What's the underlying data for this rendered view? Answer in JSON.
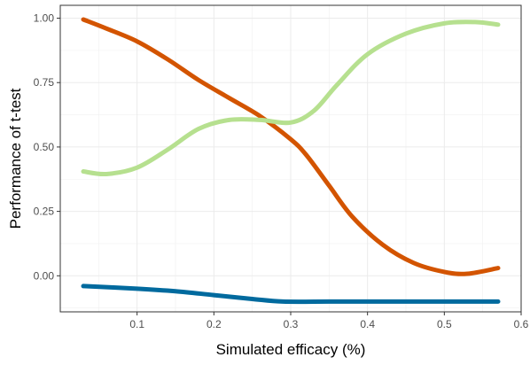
{
  "chart_data": {
    "type": "line",
    "xlabel": "Simulated efficacy (%)",
    "ylabel": "Performance of t-test",
    "xlim": [
      -0.0,
      0.6
    ],
    "ylim": [
      -0.14,
      1.05
    ],
    "x_ticks": [
      0.1,
      0.2,
      0.3,
      0.4,
      0.5,
      0.6
    ],
    "y_ticks": [
      0.0,
      0.25,
      0.5,
      0.75,
      1.0
    ],
    "x_tick_labels": [
      "0.1",
      "0.2",
      "0.3",
      "0.4",
      "0.5",
      "0.6"
    ],
    "y_tick_labels": [
      "0.00",
      "0.25",
      "0.50",
      "0.75",
      "1.00"
    ],
    "grid": true,
    "series": [
      {
        "color": "#d35400",
        "x": [
          0.03,
          0.06,
          0.1,
          0.14,
          0.18,
          0.22,
          0.26,
          0.3,
          0.32,
          0.35,
          0.38,
          0.42,
          0.46,
          0.5,
          0.53,
          0.57
        ],
        "y": [
          0.995,
          0.96,
          0.91,
          0.84,
          0.76,
          0.69,
          0.62,
          0.53,
          0.47,
          0.35,
          0.23,
          0.12,
          0.05,
          0.015,
          0.008,
          0.03
        ]
      },
      {
        "color": "#b6e08f",
        "x": [
          0.03,
          0.06,
          0.1,
          0.14,
          0.18,
          0.22,
          0.26,
          0.3,
          0.33,
          0.36,
          0.4,
          0.45,
          0.5,
          0.54,
          0.57
        ],
        "y": [
          0.405,
          0.395,
          0.42,
          0.49,
          0.57,
          0.605,
          0.605,
          0.595,
          0.64,
          0.74,
          0.86,
          0.94,
          0.98,
          0.985,
          0.975
        ]
      },
      {
        "color": "#006a9e",
        "x": [
          0.03,
          0.1,
          0.15,
          0.2,
          0.25,
          0.29,
          0.35,
          0.4,
          0.45,
          0.5,
          0.57
        ],
        "y": [
          -0.04,
          -0.05,
          -0.06,
          -0.075,
          -0.09,
          -0.1,
          -0.1,
          -0.1,
          -0.1,
          -0.1,
          -0.1
        ]
      }
    ]
  }
}
